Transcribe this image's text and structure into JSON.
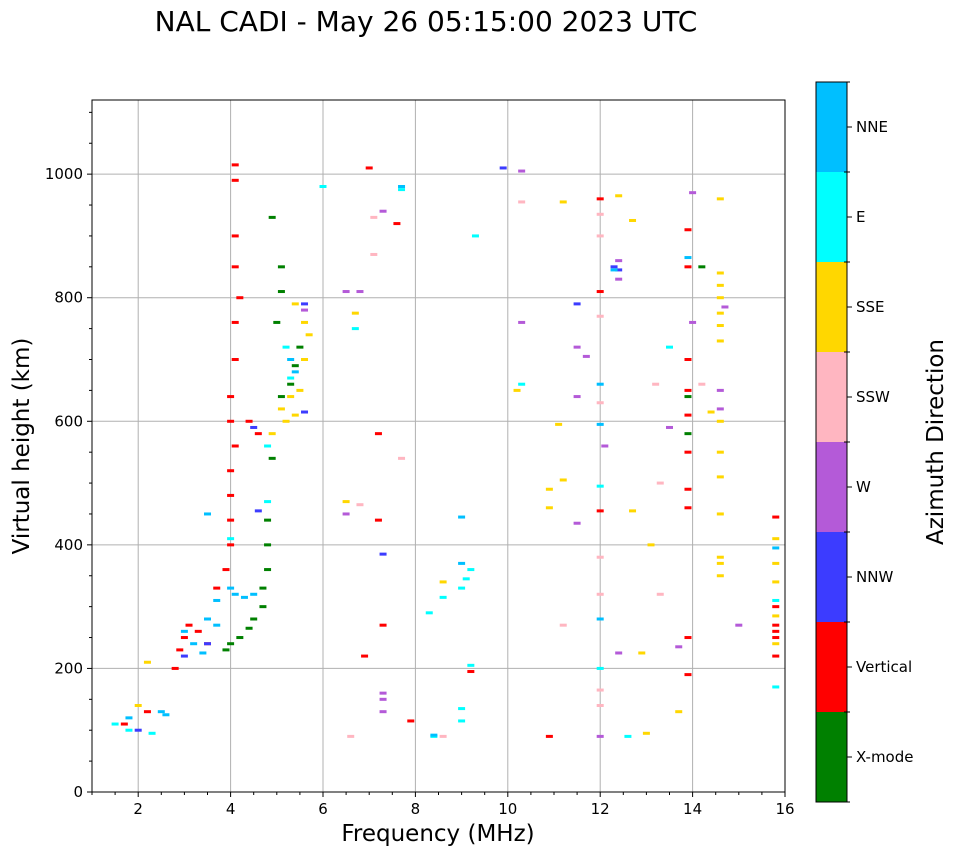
{
  "chart_data": {
    "type": "scatter",
    "title": "NAL CADI - May 26 05:15:00 2023 UTC",
    "xlabel": "Frequency (MHz)",
    "ylabel": "Virtual height (km)",
    "xlim": [
      1,
      16
    ],
    "ylim": [
      0,
      1120
    ],
    "x_ticks": [
      2,
      4,
      6,
      8,
      10,
      12,
      14,
      16
    ],
    "y_ticks": [
      0,
      200,
      400,
      600,
      800,
      1000
    ],
    "grid": true,
    "colorbar": {
      "title": "Azimuth Direction",
      "categories": [
        {
          "label": "X-mode",
          "color": "#008000"
        },
        {
          "label": "Vertical",
          "color": "#ff0000"
        },
        {
          "label": "NNW",
          "color": "#3c3cff"
        },
        {
          "label": "W",
          "color": "#b45ad8"
        },
        {
          "label": "SSW",
          "color": "#ffb6c1"
        },
        {
          "label": "SSE",
          "color": "#ffd700"
        },
        {
          "label": "E",
          "color": "#00ffff"
        },
        {
          "label": "NNE",
          "color": "#00bfff"
        }
      ]
    },
    "series": [
      {
        "name": "X-mode",
        "points": [
          [
            3.9,
            230
          ],
          [
            4.0,
            240
          ],
          [
            4.2,
            250
          ],
          [
            4.4,
            265
          ],
          [
            4.5,
            280
          ],
          [
            4.7,
            300
          ],
          [
            4.7,
            330
          ],
          [
            4.8,
            360
          ],
          [
            4.8,
            400
          ],
          [
            4.8,
            440
          ],
          [
            5.3,
            660
          ],
          [
            5.4,
            690
          ],
          [
            5.5,
            720
          ],
          [
            5.1,
            640
          ],
          [
            4.9,
            540
          ],
          [
            5.0,
            760
          ],
          [
            5.1,
            810
          ],
          [
            5.1,
            850
          ],
          [
            4.9,
            930
          ],
          [
            14.2,
            850
          ],
          [
            13.9,
            640
          ],
          [
            13.9,
            580
          ]
        ]
      },
      {
        "name": "Vertical",
        "points": [
          [
            2.8,
            200
          ],
          [
            2.9,
            230
          ],
          [
            3.0,
            250
          ],
          [
            3.1,
            270
          ],
          [
            3.3,
            260
          ],
          [
            3.5,
            240
          ],
          [
            3.7,
            330
          ],
          [
            3.9,
            360
          ],
          [
            4.0,
            400
          ],
          [
            4.0,
            440
          ],
          [
            4.0,
            480
          ],
          [
            4.0,
            520
          ],
          [
            4.1,
            560
          ],
          [
            4.0,
            600
          ],
          [
            4.0,
            640
          ],
          [
            4.1,
            700
          ],
          [
            4.1,
            760
          ],
          [
            4.2,
            800
          ],
          [
            4.1,
            850
          ],
          [
            4.1,
            900
          ],
          [
            4.1,
            990
          ],
          [
            4.1,
            1015
          ],
          [
            4.4,
            600
          ],
          [
            4.6,
            580
          ],
          [
            2.2,
            130
          ],
          [
            1.7,
            110
          ],
          [
            7.0,
            1010
          ],
          [
            7.2,
            580
          ],
          [
            7.2,
            440
          ],
          [
            7.3,
            270
          ],
          [
            7.6,
            920
          ],
          [
            6.9,
            220
          ],
          [
            7.9,
            115
          ],
          [
            9.2,
            195
          ],
          [
            10.9,
            90
          ],
          [
            12.0,
            455
          ],
          [
            12.0,
            960
          ],
          [
            12.0,
            810
          ],
          [
            13.9,
            610
          ],
          [
            13.9,
            650
          ],
          [
            13.9,
            700
          ],
          [
            13.9,
            910
          ],
          [
            13.9,
            850
          ],
          [
            13.9,
            550
          ],
          [
            13.9,
            490
          ],
          [
            13.9,
            460
          ],
          [
            13.9,
            250
          ],
          [
            13.9,
            190
          ],
          [
            15.8,
            445
          ],
          [
            15.8,
            270
          ],
          [
            15.8,
            260
          ],
          [
            15.8,
            250
          ],
          [
            15.8,
            220
          ],
          [
            15.8,
            300
          ]
        ]
      },
      {
        "name": "NNW",
        "points": [
          [
            2.0,
            100
          ],
          [
            3.0,
            220
          ],
          [
            3.5,
            240
          ],
          [
            4.5,
            590
          ],
          [
            4.6,
            455
          ],
          [
            5.6,
            790
          ],
          [
            11.5,
            790
          ],
          [
            12.3,
            850
          ],
          [
            12.4,
            845
          ],
          [
            9.9,
            1010
          ],
          [
            7.3,
            385
          ],
          [
            5.6,
            615
          ]
        ]
      },
      {
        "name": "W",
        "points": [
          [
            5.6,
            780
          ],
          [
            6.5,
            810
          ],
          [
            6.8,
            810
          ],
          [
            7.3,
            940
          ],
          [
            7.3,
            150
          ],
          [
            7.3,
            160
          ],
          [
            7.3,
            130
          ],
          [
            10.3,
            1005
          ],
          [
            10.3,
            760
          ],
          [
            11.5,
            720
          ],
          [
            11.7,
            705
          ],
          [
            12.1,
            560
          ],
          [
            12.4,
            860
          ],
          [
            12.4,
            830
          ],
          [
            12.4,
            225
          ],
          [
            13.5,
            590
          ],
          [
            13.7,
            235
          ],
          [
            14.6,
            650
          ],
          [
            14.6,
            620
          ],
          [
            14.7,
            785
          ],
          [
            14.0,
            760
          ],
          [
            14.0,
            970
          ],
          [
            12.0,
            90
          ],
          [
            15.0,
            270
          ],
          [
            6.5,
            450
          ],
          [
            11.5,
            435
          ],
          [
            11.5,
            640
          ]
        ]
      },
      {
        "name": "SSW",
        "points": [
          [
            6.6,
            90
          ],
          [
            7.1,
            870
          ],
          [
            7.1,
            930
          ],
          [
            7.7,
            540
          ],
          [
            8.6,
            90
          ],
          [
            10.3,
            955
          ],
          [
            12.0,
            935
          ],
          [
            12.0,
            900
          ],
          [
            12.0,
            770
          ],
          [
            12.0,
            630
          ],
          [
            12.0,
            380
          ],
          [
            12.0,
            320
          ],
          [
            12.0,
            165
          ],
          [
            12.0,
            140
          ],
          [
            13.2,
            660
          ],
          [
            13.3,
            500
          ],
          [
            13.3,
            320
          ],
          [
            14.2,
            660
          ],
          [
            11.2,
            270
          ],
          [
            6.8,
            465
          ]
        ]
      },
      {
        "name": "SSE",
        "points": [
          [
            5.1,
            620
          ],
          [
            5.2,
            600
          ],
          [
            5.3,
            640
          ],
          [
            5.4,
            610
          ],
          [
            5.5,
            650
          ],
          [
            5.6,
            700
          ],
          [
            5.7,
            740
          ],
          [
            5.4,
            790
          ],
          [
            5.6,
            760
          ],
          [
            4.9,
            580
          ],
          [
            6.7,
            775
          ],
          [
            6.5,
            470
          ],
          [
            8.6,
            340
          ],
          [
            10.2,
            650
          ],
          [
            10.9,
            490
          ],
          [
            10.9,
            460
          ],
          [
            11.2,
            955
          ],
          [
            11.2,
            505
          ],
          [
            12.4,
            965
          ],
          [
            12.7,
            925
          ],
          [
            12.7,
            455
          ],
          [
            12.9,
            225
          ],
          [
            13.0,
            95
          ],
          [
            13.1,
            400
          ],
          [
            13.7,
            130
          ],
          [
            14.6,
            840
          ],
          [
            14.6,
            820
          ],
          [
            14.6,
            800
          ],
          [
            14.6,
            775
          ],
          [
            14.6,
            755
          ],
          [
            14.6,
            730
          ],
          [
            14.6,
            960
          ],
          [
            14.6,
            600
          ],
          [
            14.6,
            550
          ],
          [
            14.6,
            510
          ],
          [
            14.6,
            450
          ],
          [
            14.6,
            380
          ],
          [
            14.6,
            370
          ],
          [
            14.6,
            350
          ],
          [
            14.4,
            615
          ],
          [
            15.8,
            410
          ],
          [
            15.8,
            370
          ],
          [
            15.8,
            340
          ],
          [
            15.8,
            285
          ],
          [
            15.8,
            240
          ],
          [
            11.1,
            595
          ],
          [
            2.2,
            210
          ],
          [
            2.0,
            140
          ]
        ]
      },
      {
        "name": "E",
        "points": [
          [
            1.5,
            110
          ],
          [
            1.8,
            100
          ],
          [
            2.3,
            95
          ],
          [
            4.8,
            470
          ],
          [
            4.8,
            560
          ],
          [
            5.2,
            720
          ],
          [
            5.3,
            670
          ],
          [
            6.0,
            980
          ],
          [
            6.7,
            750
          ],
          [
            8.3,
            290
          ],
          [
            8.6,
            315
          ],
          [
            9.0,
            330
          ],
          [
            9.1,
            345
          ],
          [
            9.2,
            360
          ],
          [
            9.0,
            135
          ],
          [
            9.0,
            115
          ],
          [
            9.2,
            205
          ],
          [
            9.3,
            900
          ],
          [
            10.3,
            660
          ],
          [
            12.6,
            90
          ],
          [
            13.5,
            720
          ],
          [
            15.8,
            170
          ],
          [
            15.8,
            310
          ],
          [
            12.0,
            200
          ],
          [
            12.0,
            495
          ],
          [
            7.7,
            975
          ],
          [
            8.4,
            90
          ],
          [
            4.0,
            410
          ]
        ]
      },
      {
        "name": "NNE",
        "points": [
          [
            3.5,
            280
          ],
          [
            3.7,
            270
          ],
          [
            4.0,
            330
          ],
          [
            4.1,
            320
          ],
          [
            4.3,
            315
          ],
          [
            4.5,
            320
          ],
          [
            3.7,
            310
          ],
          [
            3.2,
            240
          ],
          [
            5.3,
            700
          ],
          [
            5.4,
            680
          ],
          [
            9.0,
            445
          ],
          [
            9.0,
            370
          ],
          [
            12.0,
            660
          ],
          [
            12.0,
            595
          ],
          [
            12.0,
            280
          ],
          [
            12.3,
            845
          ],
          [
            13.9,
            865
          ],
          [
            2.5,
            130
          ],
          [
            1.8,
            120
          ],
          [
            3.5,
            450
          ],
          [
            15.8,
            395
          ],
          [
            7.7,
            980
          ],
          [
            8.4,
            92
          ],
          [
            2.6,
            125
          ],
          [
            3.0,
            260
          ],
          [
            3.4,
            225
          ]
        ]
      }
    ]
  }
}
